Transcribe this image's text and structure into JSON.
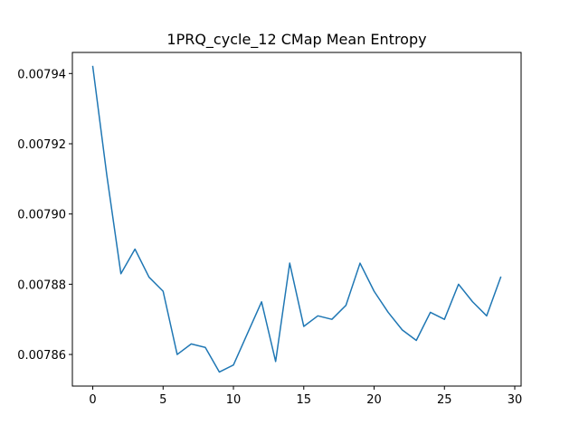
{
  "chart_data": {
    "type": "line",
    "title": "1PRQ_cycle_12 CMap Mean Entropy",
    "xlabel": "",
    "ylabel": "",
    "xlim": [
      -1.45,
      30.45
    ],
    "ylim": [
      0.007851,
      0.007946
    ],
    "xticks": [
      0,
      5,
      10,
      15,
      20,
      25,
      30
    ],
    "xtick_labels": [
      "0",
      "5",
      "10",
      "15",
      "20",
      "25",
      "30"
    ],
    "yticks": [
      0.00786,
      0.00788,
      0.0079,
      0.00792,
      0.00794
    ],
    "ytick_labels": [
      "0.00786",
      "0.00788",
      "0.00790",
      "0.00792",
      "0.00794"
    ],
    "grid": false,
    "series": [
      {
        "color": "#1f77b4",
        "x": [
          0,
          1,
          2,
          3,
          4,
          5,
          6,
          7,
          8,
          9,
          10,
          11,
          12,
          13,
          14,
          15,
          16,
          17,
          18,
          19,
          20,
          21,
          22,
          23,
          24,
          25,
          26,
          27,
          28,
          29
        ],
        "values": [
          0.007942,
          0.007911,
          0.007883,
          0.00789,
          0.007882,
          0.007878,
          0.00786,
          0.007863,
          0.007862,
          0.007855,
          0.007857,
          0.007866,
          0.007875,
          0.007858,
          0.007886,
          0.007868,
          0.007871,
          0.00787,
          0.007874,
          0.007886,
          0.007878,
          0.007872,
          0.007867,
          0.007864,
          0.007872,
          0.00787,
          0.00788,
          0.007875,
          0.007871,
          0.007882
        ]
      }
    ]
  }
}
